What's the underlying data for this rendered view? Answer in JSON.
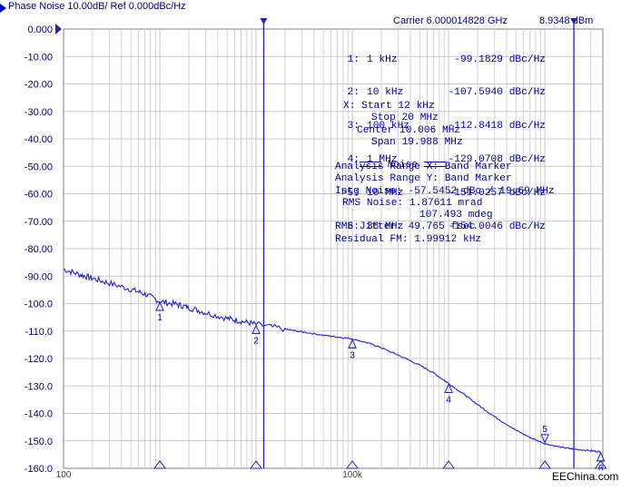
{
  "header": {
    "title": "Phase Noise 10.00dB/ Ref 0.000dBc/Hz",
    "carrier": "Carrier 6.000014828 GHz",
    "carrier_level": "8.9348 dBm"
  },
  "marker_table": [
    {
      "id": "1:",
      "freq": "1 kHz",
      "value": "-99.1829",
      "unit": "dBc/Hz"
    },
    {
      "id": "2:",
      "freq": "10 kHz",
      "value": "-107.5940",
      "unit": "dBc/Hz"
    },
    {
      "id": "3:",
      "freq": "100 kHz",
      "value": "-112.8418",
      "unit": "dBc/Hz"
    },
    {
      "id": "4:",
      "freq": "1 MHz",
      "value": "-129.0708",
      "unit": "dBc/Hz"
    },
    {
      "id": ">5:",
      "freq": "10 MHz",
      "value": "-151.0257",
      "unit": "dBc/Hz"
    },
    {
      "id": "6:",
      "freq": "38 MHz",
      "value": "-154.0046",
      "unit": "dBc/Hz"
    }
  ],
  "analysis": {
    "start": "X: Start 12 kHz",
    "stop": "Stop 20 MHz",
    "center": "Center 10.006 MHz",
    "span": "Span 19.988 MHz",
    "noise_header": "Noise",
    "range_x": "Analysis Range X: Band Marker",
    "range_y": "Analysis Range Y: Band Marker",
    "intg_noise": "Intg Noise: -57.5452 dBc / 19.69 MHz",
    "rms_noise": "RMS Noise: 1.87611 mrad",
    "rms_noise_deg": "107.493 mdeg",
    "rms_jitter": "RMS Jitter: 49.765 fsec",
    "residual_fm": "Residual FM: 1.99912 kHz"
  },
  "watermark": "EEChina.com",
  "colors": {
    "trace": "#2020e0",
    "grid": "#c8c8c8",
    "axis_text": "#000080",
    "band_marker": "#2020c0"
  },
  "chart_data": {
    "type": "line",
    "title": "Phase Noise 10.00dB/ Ref 0.000dBc/Hz",
    "xscale": "log",
    "xlim": [
      100,
      40000000
    ],
    "ylim": [
      -160,
      0
    ],
    "xlabel": "",
    "ylabel": "",
    "x_tick_labels": [
      {
        "value": 100,
        "label": "100"
      },
      {
        "value": 100000,
        "label": "100k"
      }
    ],
    "y_ticks": [
      0,
      -10,
      -20,
      -30,
      -40,
      -50,
      -60,
      -70,
      -80,
      -90,
      -100,
      -110,
      -120,
      -130,
      -140,
      -150,
      -160
    ],
    "y_tick_labels": [
      "0.000",
      "-10.00",
      "-20.00",
      "-30.00",
      "-40.00",
      "-50.00",
      "-60.00",
      "-70.00",
      "-80.00",
      "-90.00",
      "-100.0",
      "-110.0",
      "-120.0",
      "-130.0",
      "-140.0",
      "-150.0",
      "-160.0"
    ],
    "grid": true,
    "band_markers": [
      12000,
      20000000
    ],
    "series": [
      {
        "x": [
          100,
          150,
          200,
          300,
          500,
          700,
          1000,
          1500,
          2000,
          3000,
          5000,
          7000,
          10000,
          20000,
          30000,
          50000,
          70000,
          100000,
          150000,
          200000,
          300000,
          500000,
          700000,
          1000000,
          1500000,
          2000000,
          3000000,
          5000000,
          7000000,
          10000000,
          15000000,
          20000000,
          30000000,
          38000000
        ],
        "y": [
          -87.5,
          -89.5,
          -90.8,
          -92.6,
          -94.8,
          -96.5,
          -99.2,
          -100.3,
          -101.5,
          -103.3,
          -105.4,
          -106.4,
          -107.6,
          -109.3,
          -110.3,
          -111.5,
          -112.2,
          -112.8,
          -114.5,
          -116.1,
          -118.8,
          -122.4,
          -125.3,
          -129.1,
          -133.5,
          -136.8,
          -141.2,
          -146.1,
          -148.8,
          -151.0,
          -152.4,
          -153.0,
          -153.6,
          -154.0
        ]
      }
    ],
    "markers": [
      {
        "label": "1",
        "x": 1000,
        "y": -99.1829
      },
      {
        "label": "2",
        "x": 10000,
        "y": -107.594
      },
      {
        "label": "3",
        "x": 100000,
        "y": -112.8418
      },
      {
        "label": "4",
        "x": 1000000,
        "y": -129.0708
      },
      {
        "label": "5",
        "x": 10000000,
        "y": -151.0257
      },
      {
        "label": "6",
        "x": 38000000,
        "y": -154.0046
      }
    ]
  }
}
